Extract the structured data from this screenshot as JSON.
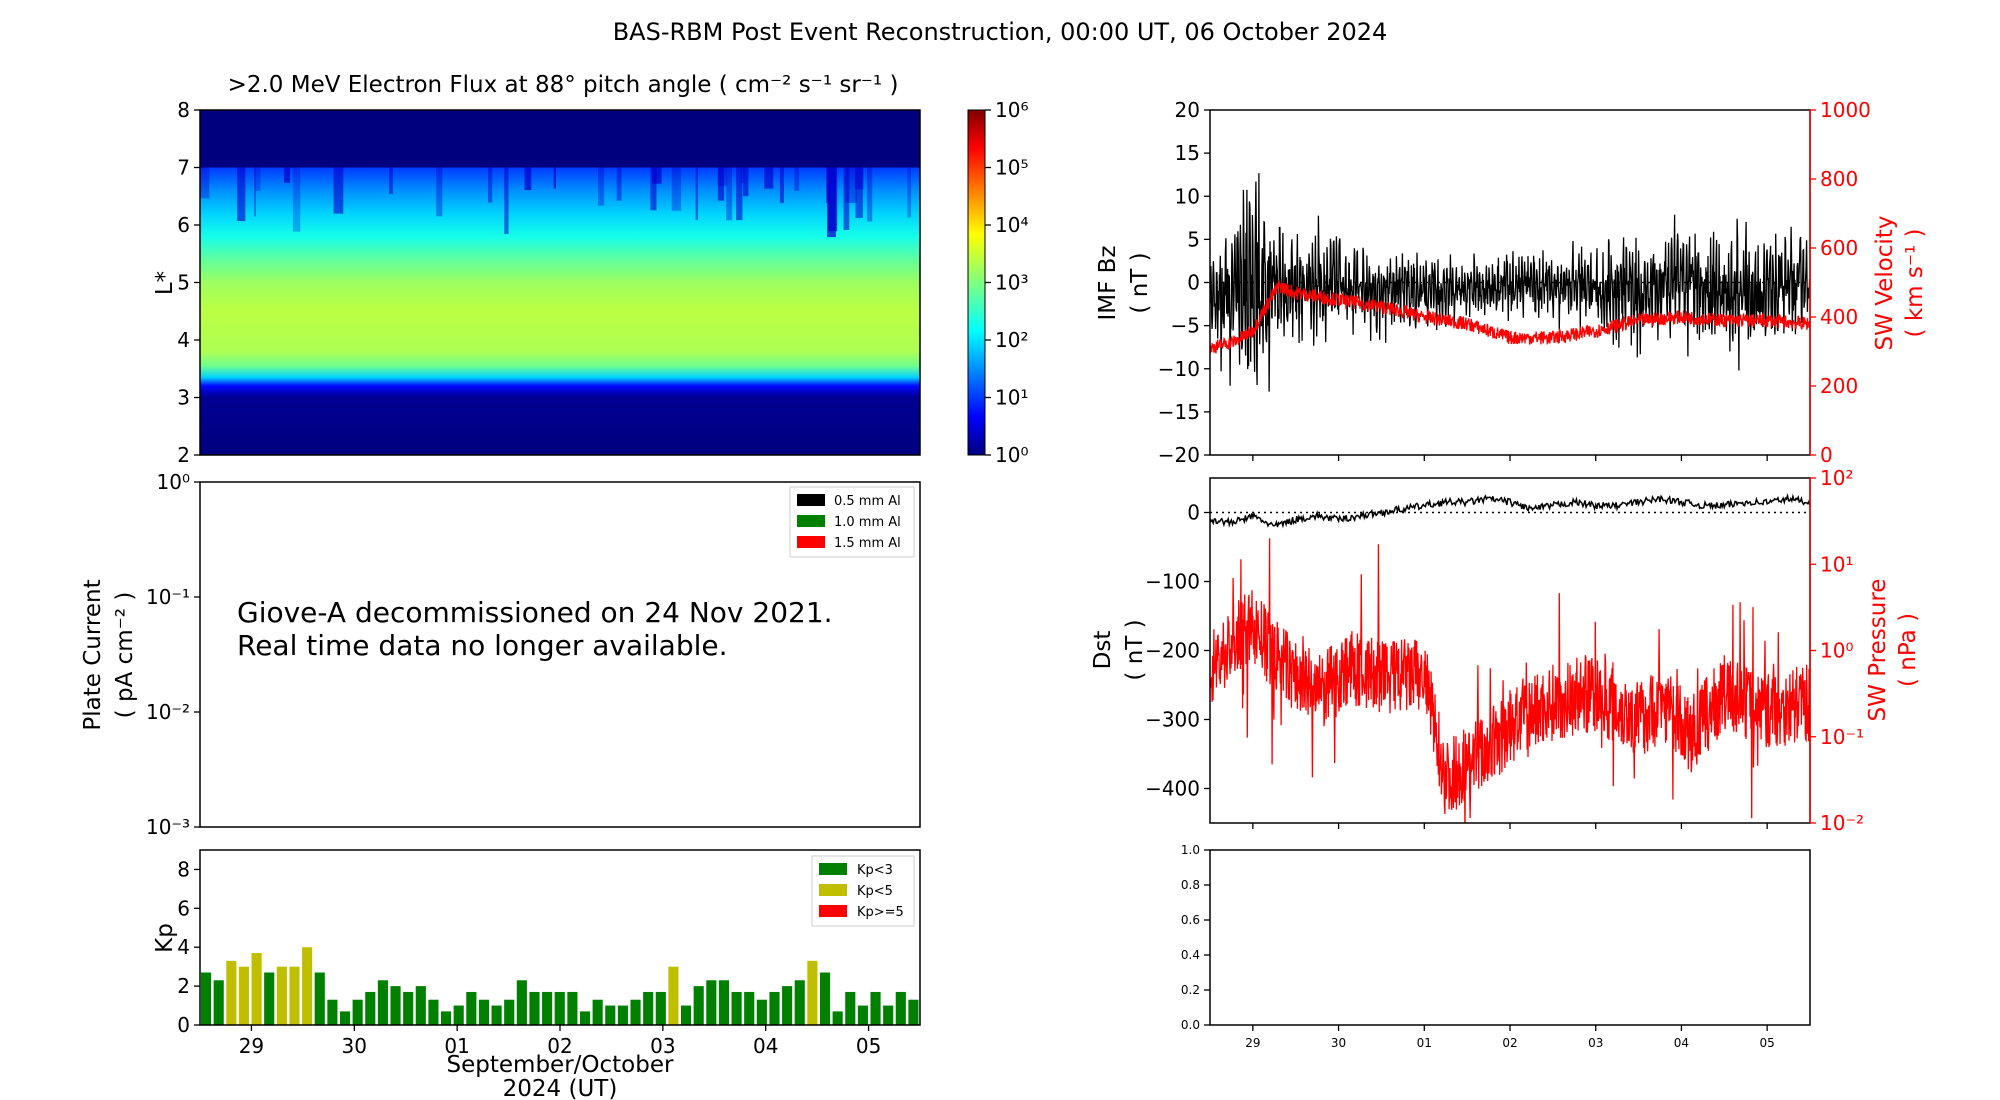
{
  "figure_title": "BAS-RBM Post Event Reconstruction, 00:00 UT, 06 October 2024",
  "colors": {
    "bz": "#000000",
    "velocity": "#ff0000",
    "dst": "#000000",
    "pressure": "#ff0000",
    "kp_low": "#008000",
    "kp_mid": "#bfbf00",
    "kp_high": "#ff0000"
  },
  "date_ticks": [
    "29",
    "30",
    "01",
    "02",
    "03",
    "04",
    "05"
  ],
  "xlabel": {
    "line1": "September/October",
    "line2": "2024 (UT)"
  },
  "chart_data": [
    {
      "id": "flux",
      "type": "heatmap",
      "title": ">2.0 MeV Electron Flux at 88° pitch angle ( cm⁻² s⁻¹ sr⁻¹ )",
      "ylabel": "L*",
      "ylim": [
        2,
        8
      ],
      "yticks": [
        "2",
        "3",
        "4",
        "5",
        "6",
        "7",
        "8"
      ],
      "l_max": 7.0,
      "colorbar": {
        "range": [
          0,
          6
        ],
        "ticks": [
          "10⁰",
          "10¹",
          "10²",
          "10³",
          "10⁴",
          "10⁵",
          "10⁶"
        ]
      },
      "log_flux_profile": [
        [
          2.0,
          0.0
        ],
        [
          3.0,
          0.1
        ],
        [
          3.2,
          0.7
        ],
        [
          3.35,
          1.9
        ],
        [
          3.55,
          2.9
        ],
        [
          3.8,
          3.3
        ],
        [
          4.5,
          3.4
        ],
        [
          5.0,
          3.2
        ],
        [
          5.4,
          2.8
        ],
        [
          5.8,
          2.3
        ],
        [
          6.2,
          1.9
        ],
        [
          6.6,
          1.5
        ],
        [
          7.0,
          1.0
        ]
      ]
    },
    {
      "id": "plate",
      "type": "line",
      "ylabel": "Plate Current",
      "ylabel_units": "( pA cm⁻² )",
      "ylim_log": [
        -3,
        0
      ],
      "yticks": [
        "10⁻³",
        "10⁻²",
        "10⁻¹",
        "10⁰"
      ],
      "legend": [
        "0.5 mm Al",
        "1.0 mm Al",
        "1.5 mm Al"
      ],
      "legend_colors": [
        "#000000",
        "#008000",
        "#ff0000"
      ],
      "message": [
        "Giove-A decommissioned on 24 Nov 2021.",
        "Real time data no longer available."
      ]
    },
    {
      "id": "kp",
      "type": "bar",
      "ylabel": "Kp",
      "ylim": [
        0,
        9
      ],
      "yticks": [
        "0",
        "2",
        "4",
        "6",
        "8"
      ],
      "legend": [
        "Kp<3",
        "Kp<5",
        "Kp>=5"
      ],
      "values": [
        2.7,
        2.3,
        3.3,
        3.0,
        3.7,
        2.7,
        3.0,
        3.0,
        4.0,
        2.7,
        1.3,
        0.7,
        1.3,
        1.7,
        2.3,
        2.0,
        1.7,
        2.0,
        1.3,
        0.7,
        1.0,
        1.7,
        1.3,
        1.0,
        1.3,
        2.3,
        1.7,
        1.7,
        1.7,
        1.7,
        0.7,
        1.3,
        1.0,
        1.0,
        1.3,
        1.7,
        1.7,
        3.0,
        1.0,
        2.0,
        2.3,
        2.3,
        1.7,
        1.7,
        1.3,
        1.7,
        2.0,
        2.3,
        3.3,
        2.7,
        0.7,
        1.7,
        1.0,
        1.7,
        1.0,
        1.7,
        1.3
      ]
    },
    {
      "id": "bz",
      "type": "line",
      "ylabel": "IMF Bz",
      "ylabel_units": "( nT )",
      "ylim": [
        -20,
        20
      ],
      "yticks": [
        "−20",
        "−15",
        "−10",
        "−5",
        "0",
        "5",
        "10",
        "15",
        "20"
      ],
      "y2label": "SW Velocity",
      "y2label_units": "( km s⁻¹ )",
      "y2lim": [
        0,
        1000
      ],
      "y2ticks": [
        "0",
        "200",
        "400",
        "600",
        "800",
        "1000"
      ],
      "bz_envelope": {
        "x_days": [
          0,
          0.5,
          0.7,
          1.0,
          1.5,
          2.0,
          2.5,
          3.0,
          3.5,
          4.0,
          4.5,
          5.0,
          5.5,
          6.0,
          6.5,
          7.0
        ],
        "upper": [
          2,
          11,
          8,
          5,
          5,
          3,
          3,
          2,
          3,
          3,
          4,
          5,
          5,
          5,
          6,
          4
        ],
        "lower": [
          -6,
          -11,
          -9,
          -6,
          -5,
          -5,
          -5,
          -4,
          -4,
          -4,
          -5,
          -7,
          -6,
          -7,
          -7,
          -4
        ]
      },
      "velocity": {
        "x_days": [
          0,
          0.3,
          0.5,
          0.65,
          0.8,
          1.0,
          1.5,
          2.0,
          2.5,
          3.0,
          3.5,
          4.0,
          4.5,
          5.0,
          5.5,
          6.0,
          6.5,
          7.0
        ],
        "values": [
          310,
          330,
          360,
          430,
          490,
          470,
          450,
          430,
          400,
          380,
          340,
          340,
          360,
          390,
          400,
          390,
          390,
          380
        ]
      }
    },
    {
      "id": "dst",
      "type": "line",
      "ylabel": "Dst",
      "ylabel_units": "( nT )",
      "ylim": [
        -450,
        50
      ],
      "yticks": [
        "−400",
        "−300",
        "−200",
        "−100",
        "0"
      ],
      "y2label": "SW Pressure",
      "y2label_units": "( nPa )",
      "y2lim_log": [
        -2,
        2
      ],
      "y2ticks": [
        "10⁻²",
        "10⁻¹",
        "10⁰",
        "10¹",
        "10²"
      ],
      "dst": {
        "x_days": [
          0,
          0.25,
          0.5,
          0.75,
          1.0,
          1.25,
          1.5,
          1.75,
          2.0,
          2.25,
          2.5,
          2.75,
          3.0,
          3.25,
          3.5,
          3.75,
          4.0,
          4.25,
          4.5,
          4.75,
          5.0,
          5.25,
          5.5,
          5.75,
          6.0,
          6.25,
          6.5,
          6.75,
          7.0
        ],
        "values": [
          -10,
          -15,
          -5,
          -20,
          -10,
          -5,
          -10,
          -5,
          0,
          5,
          10,
          15,
          15,
          20,
          15,
          5,
          10,
          15,
          10,
          10,
          15,
          20,
          15,
          10,
          10,
          15,
          15,
          20,
          15
        ]
      },
      "pressure_log": {
        "x_days": [
          0,
          0.3,
          0.5,
          0.7,
          1.0,
          1.3,
          1.6,
          2.0,
          2.5,
          2.75,
          3.0,
          3.3,
          3.6,
          4.0,
          4.5,
          5.0,
          5.3,
          5.6,
          6.0,
          6.5,
          7.0
        ],
        "values": [
          -0.2,
          0.1,
          0.3,
          0.0,
          -0.3,
          -0.5,
          -0.2,
          -0.3,
          -0.3,
          -1.5,
          -1.3,
          -1.1,
          -0.8,
          -0.6,
          -0.5,
          -0.8,
          -0.6,
          -1.0,
          -0.5,
          -0.7,
          -0.6
        ]
      }
    },
    {
      "id": "blank",
      "type": "line",
      "ylim": [
        0,
        1
      ],
      "yticks": [
        "0.0",
        "0.2",
        "0.4",
        "0.6",
        "0.8",
        "1.0"
      ]
    }
  ]
}
